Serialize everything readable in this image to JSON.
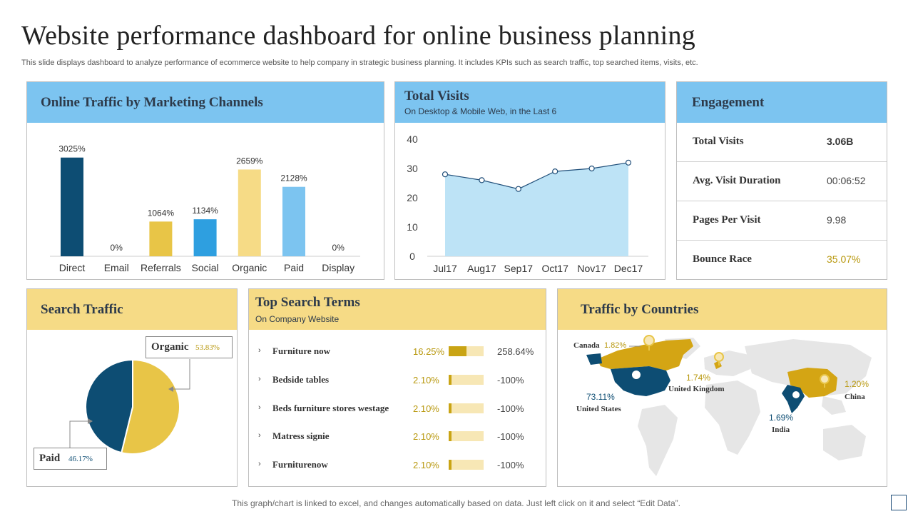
{
  "header": {
    "title": "Website performance dashboard for online business planning",
    "subtitle": "This slide displays dashboard to analyze performance of ecommerce website to help company in strategic business planning. It includes KPIs such as search traffic, top searched items, visits, etc."
  },
  "colors": {
    "blue_head": "#7cc4f0",
    "yellow_head": "#f6db86",
    "navy": "#0d4d73",
    "gold": "#e8c547",
    "light_blue": "#bde3f6"
  },
  "traffic_panel": {
    "title": "Online Traffic by Marketing Channels"
  },
  "visits_panel": {
    "title": "Total Visits",
    "subtitle": "On Desktop & Mobile Web, in the Last 6"
  },
  "engagement": {
    "title": "Engagement",
    "rows": [
      {
        "label": "Total Visits",
        "value": "3.06B"
      },
      {
        "label": "Avg. Visit Duration",
        "value": "00:06:52"
      },
      {
        "label": "Pages Per Visit",
        "value": "9.98"
      },
      {
        "label": "Bounce Race",
        "value": "35.07%"
      }
    ]
  },
  "search_panel": {
    "title": "Search Traffic",
    "organic_label": "Organic",
    "organic_value": "53.83%",
    "paid_label": "Paid",
    "paid_value": "46.17%"
  },
  "terms_panel": {
    "title": "Top Search Terms",
    "subtitle": "On Company Website",
    "rows": [
      {
        "term": "Furniture now",
        "share": "16.25%",
        "share_fraction": 0.5,
        "change": "258.64%"
      },
      {
        "term": "Bedside tables",
        "share": "2.10%",
        "share_fraction": 0.07,
        "change": "-100%"
      },
      {
        "term": "Beds furniture stores westage",
        "share": "2.10%",
        "share_fraction": 0.07,
        "change": "-100%"
      },
      {
        "term": "Matress signie",
        "share": "2.10%",
        "share_fraction": 0.07,
        "change": "-100%"
      },
      {
        "term": "Furniturenow",
        "share": "2.10%",
        "share_fraction": 0.07,
        "change": "-100%"
      }
    ]
  },
  "countries_panel": {
    "title": "Traffic by Countries",
    "countries": [
      {
        "name": "Canada",
        "value": "1.82%"
      },
      {
        "name": "United Kingdom",
        "value": "1.74%"
      },
      {
        "name": "China",
        "value": "1.20%"
      },
      {
        "name": "United States",
        "value": "73.11%"
      },
      {
        "name": "India",
        "value": "1.69%"
      }
    ]
  },
  "footer": {
    "note": "This graph/chart is linked to excel,  and changes automatically based on data. Just left click on it and select “Edit Data”."
  },
  "chart_data": [
    {
      "type": "bar",
      "categories": [
        "Direct",
        "Email",
        "Referrals",
        "Social",
        "Organic",
        "Paid",
        "Display"
      ],
      "values": [
        3025,
        0,
        1064,
        1134,
        2659,
        2128,
        0
      ],
      "labels": [
        "3025%",
        "0%",
        "1064%",
        "1134%",
        "2659%",
        "2128%",
        "0%"
      ],
      "colors": [
        "#0d4d73",
        "#0d4d73",
        "#e8c547",
        "#2e9fe0",
        "#f6db86",
        "#7cc4f0",
        "#7cc4f0"
      ],
      "ylim": [
        0,
        3500
      ]
    },
    {
      "type": "area",
      "categories": [
        "Jul17",
        "Aug17",
        "Sep17",
        "Oct17",
        "Nov17",
        "Dec17"
      ],
      "values": [
        28,
        26,
        23,
        29,
        30,
        32
      ],
      "yticks": [
        "0",
        "10",
        "20",
        "30",
        "40"
      ],
      "ylim": [
        0,
        40
      ]
    },
    {
      "type": "pie",
      "labels": [
        "Organic",
        "Paid"
      ],
      "values": [
        53.83,
        46.17
      ],
      "colors": [
        "#e8c547",
        "#0d4d73"
      ]
    }
  ]
}
